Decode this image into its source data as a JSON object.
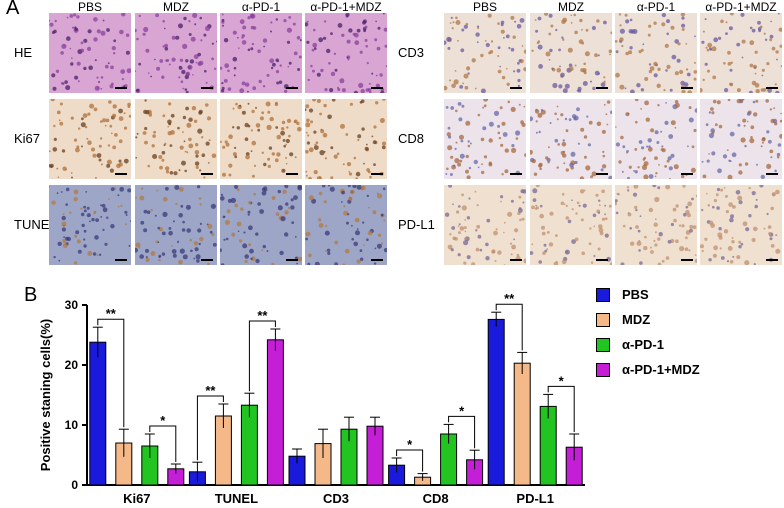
{
  "panelA": {
    "letter": "A",
    "left_group": {
      "columns": [
        "PBS",
        "MDZ",
        "α-PD-1",
        "α-PD-1+MDZ"
      ],
      "rows": [
        "HE",
        "Ki67",
        "TUNEL"
      ]
    },
    "right_group": {
      "columns": [
        "PBS",
        "MDZ",
        "α-PD-1",
        "α-PD-1+MDZ"
      ],
      "rows": [
        "CD3",
        "CD8",
        "PD-L1"
      ]
    }
  },
  "panelB": {
    "letter": "B"
  },
  "colors": {
    "PBS": "#1a1adc",
    "MDZ": "#f5b888",
    "α-PD-1": "#22c422",
    "α-PD-1+MDZ": "#c41ed6"
  },
  "chart_data": {
    "type": "bar",
    "categories": [
      "Ki67",
      "TUNEL",
      "CD3",
      "CD8",
      "PD-L1"
    ],
    "series": [
      {
        "name": "PBS",
        "values": [
          23.8,
          2.2,
          4.8,
          3.3,
          27.6
        ],
        "errors": [
          2.5,
          1.6,
          1.2,
          1.2,
          1.2
        ]
      },
      {
        "name": "MDZ",
        "values": [
          7.0,
          11.5,
          6.9,
          1.3,
          20.3
        ],
        "errors": [
          2.3,
          2.0,
          2.4,
          0.6,
          1.8
        ]
      },
      {
        "name": "α-PD-1",
        "values": [
          6.5,
          13.3,
          9.3,
          8.5,
          13.1
        ],
        "errors": [
          2.0,
          2.0,
          2.0,
          1.6,
          2.0
        ]
      },
      {
        "name": "α-PD-1+MDZ",
        "values": [
          2.7,
          24.2,
          9.8,
          4.2,
          6.3
        ],
        "errors": [
          0.8,
          1.8,
          1.5,
          1.6,
          2.2
        ]
      }
    ],
    "significance": [
      {
        "category": "Ki67",
        "from": 0,
        "to": 1,
        "label": "**"
      },
      {
        "category": "Ki67",
        "from": 2,
        "to": 3,
        "label": "*"
      },
      {
        "category": "TUNEL",
        "from": 0,
        "to": 1,
        "label": "**"
      },
      {
        "category": "TUNEL",
        "from": 2,
        "to": 3,
        "label": "**"
      },
      {
        "category": "CD8",
        "from": 0,
        "to": 1,
        "label": "*"
      },
      {
        "category": "CD8",
        "from": 2,
        "to": 3,
        "label": "*"
      },
      {
        "category": "PD-L1",
        "from": 0,
        "to": 1,
        "label": "**"
      },
      {
        "category": "PD-L1",
        "from": 2,
        "to": 3,
        "label": "*"
      }
    ],
    "ylabel": "Positive staning cells(%)",
    "xlabel": "",
    "ylim": [
      0,
      30
    ],
    "yticks": [
      "0",
      "10",
      "20",
      "30"
    ],
    "grid": false,
    "legend": "right"
  }
}
